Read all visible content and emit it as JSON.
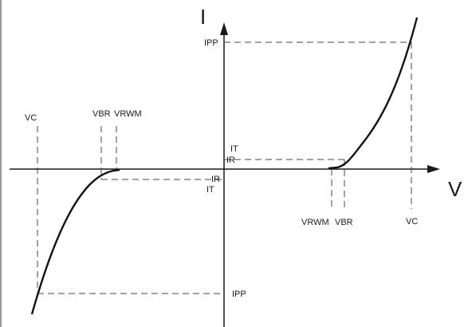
{
  "diagram": {
    "axes": {
      "x_label": "V",
      "y_label": "I"
    },
    "labels": {
      "ipp_top": "IPP",
      "ipp_bottom": "IPP",
      "vc_left": "VC",
      "vc_right": "VC",
      "vbr_left": "VBR",
      "vrwm_left": "VRWM",
      "vrwm_right": "VRWM",
      "vbr_right": "VBR",
      "it_top": "IT",
      "ir_top": "IR",
      "ir_bottom": "IR",
      "it_bottom": "IT"
    }
  }
}
